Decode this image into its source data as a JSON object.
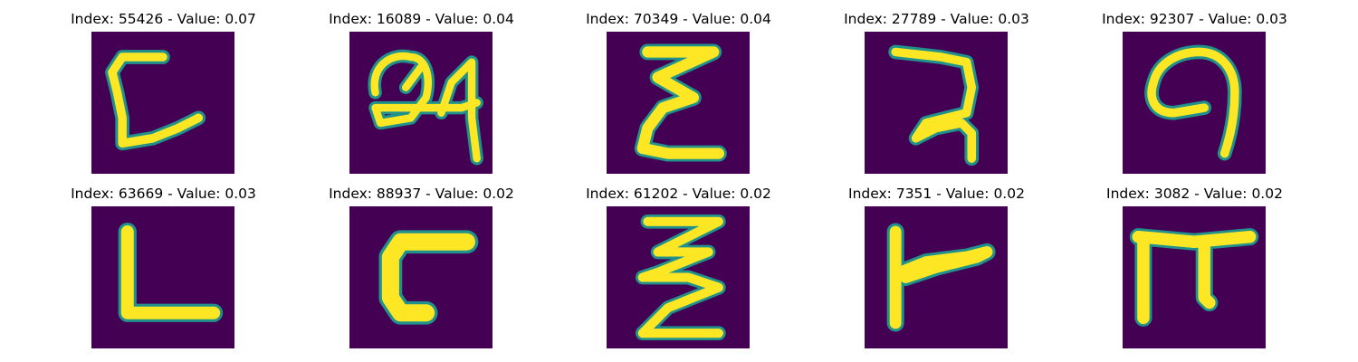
{
  "colors": {
    "background": "#440154",
    "edge_dark": "#31688e",
    "edge_mid": "#21918c",
    "edge_light": "#5ec962",
    "stroke": "#fde725"
  },
  "tiles": [
    {
      "title": "Index: 55426 - Value: 0.07",
      "glyph": "hand-drawn-c-with-tail"
    },
    {
      "title": "Index: 16089 - Value: 0.04",
      "glyph": "hand-drawn-looped-figure"
    },
    {
      "title": "Index: 70349 - Value: 0.04",
      "glyph": "hand-drawn-e-zigzag"
    },
    {
      "title": "Index: 27789 - Value: 0.03",
      "glyph": "hand-drawn-numeral-glyph"
    },
    {
      "title": "Index: 92307 - Value: 0.03",
      "glyph": "hand-drawn-spiral-glyph"
    },
    {
      "title": "Index: 63669 - Value: 0.03",
      "glyph": "hand-drawn-l"
    },
    {
      "title": "Index: 88937 - Value: 0.02",
      "glyph": "hand-drawn-bracket"
    },
    {
      "title": "Index: 61202 - Value: 0.02",
      "glyph": "hand-drawn-z-zigzag"
    },
    {
      "title": "Index: 7351 - Value: 0.02",
      "glyph": "hand-drawn-t-sideways"
    },
    {
      "title": "Index: 3082 - Value: 0.02",
      "glyph": "hand-drawn-pi"
    }
  ]
}
